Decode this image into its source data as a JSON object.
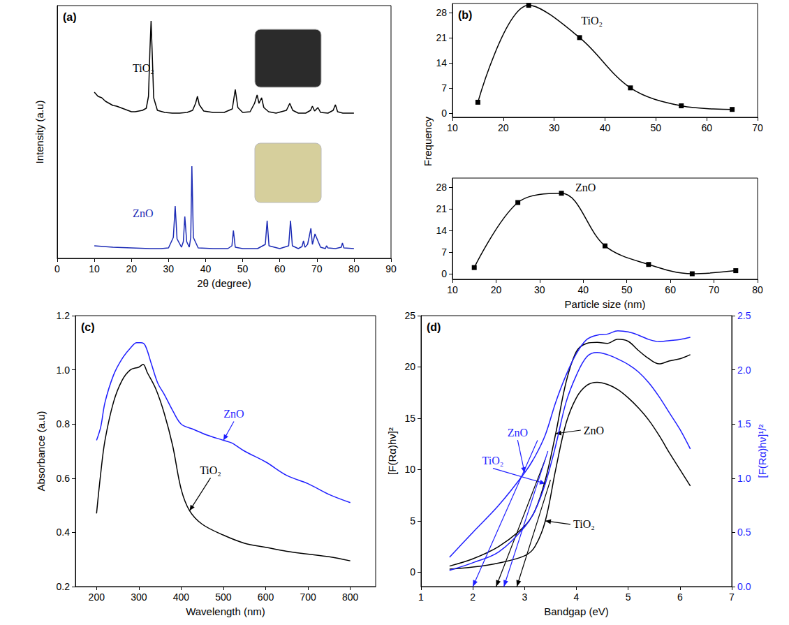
{
  "chart_data": [
    {
      "type": "line",
      "panel_label": "(a)",
      "xlabel": "2θ (degree)",
      "ylabel": "Intensity (a.u)",
      "xlim": [
        0,
        90
      ],
      "xticks": [
        0,
        10,
        20,
        30,
        40,
        50,
        60,
        70,
        80,
        90
      ],
      "ylim": [
        0,
        362
      ],
      "tick_labels": "x",
      "grid": false,
      "series": [
        {
          "name": "TiO₂",
          "color": "#000000",
          "x": [
            10,
            11,
            12,
            13,
            14,
            15,
            16,
            17,
            18,
            19,
            20,
            21,
            22,
            23,
            24,
            24.6,
            25.0,
            25.3,
            25.6,
            26.0,
            27,
            29,
            31,
            33,
            35,
            36.5,
            37.3,
            37.8,
            38.3,
            39.5,
            42,
            45,
            47.2,
            48.0,
            48.7,
            50,
            52,
            53.2,
            53.9,
            54.4,
            55.1,
            55.7,
            57,
            59,
            61.8,
            62.7,
            63.5,
            65,
            67,
            68.3,
            68.8,
            69.4,
            70.3,
            71,
            73,
            74.4,
            75.0,
            75.6,
            77,
            80
          ],
          "values": [
            238,
            232,
            230,
            225,
            222,
            219,
            218,
            216,
            214,
            212,
            210,
            210,
            211,
            212,
            215,
            232,
            300,
            340,
            295,
            230,
            212,
            209,
            208,
            208,
            209,
            212,
            222,
            232,
            220,
            211,
            209,
            209,
            214,
            242,
            216,
            209,
            210,
            222,
            234,
            222,
            230,
            216,
            210,
            208,
            212,
            222,
            212,
            208,
            208,
            212,
            218,
            211,
            216,
            209,
            208,
            212,
            220,
            210,
            208,
            208
          ]
        },
        {
          "name": "ZnO",
          "color": "#1c2bb5",
          "x": [
            10,
            15,
            20,
            25,
            28,
            30,
            31.3,
            31.8,
            32.3,
            33.5,
            34.0,
            34.4,
            34.9,
            35.6,
            36.0,
            36.3,
            36.7,
            38,
            42,
            46,
            47.1,
            47.5,
            48.0,
            50,
            54,
            56.1,
            56.6,
            57.1,
            60,
            62.4,
            62.9,
            63.4,
            65,
            66.0,
            66.4,
            66.8,
            67.5,
            67.9,
            68.4,
            68.8,
            69.1,
            69.5,
            71,
            72.3,
            72.6,
            73,
            75,
            76.6,
            76.9,
            77.3,
            80
          ],
          "values": [
            18,
            16,
            15,
            14,
            14,
            15,
            30,
            75,
            28,
            16,
            24,
            60,
            24,
            16,
            30,
            132,
            30,
            15,
            14,
            14,
            18,
            40,
            16,
            14,
            14,
            20,
            54,
            18,
            14,
            18,
            54,
            18,
            14,
            17,
            25,
            16,
            20,
            30,
            43,
            20,
            26,
            35,
            16,
            14,
            18,
            15,
            14,
            16,
            22,
            15,
            14
          ]
        }
      ]
    },
    {
      "type": "line",
      "panel_label": "(b)",
      "ylabel": "Frequency",
      "xlim": [
        10,
        70
      ],
      "xticks": [
        10,
        20,
        30,
        40,
        50,
        60,
        70
      ],
      "ylim": [
        -1.2,
        30.5
      ],
      "yticks": [
        0,
        7,
        14,
        21,
        28
      ],
      "grid": false,
      "series": [
        {
          "name": "TiO₂",
          "color": "#000000",
          "marker": "square",
          "x": [
            15,
            25,
            35,
            45,
            55,
            65
          ],
          "values": [
            3,
            30,
            21,
            7,
            2,
            1
          ]
        }
      ]
    },
    {
      "type": "line",
      "xlabel": "Particle size (nm)",
      "xlim": [
        10,
        80
      ],
      "xticks": [
        10,
        20,
        30,
        40,
        50,
        60,
        70,
        80
      ],
      "ylim": [
        -1.8,
        30.9
      ],
      "yticks": [
        0,
        7,
        14,
        21,
        28
      ],
      "grid": false,
      "series": [
        {
          "name": "ZnO",
          "color": "#000000",
          "marker": "square",
          "x": [
            15,
            25,
            35,
            45,
            55,
            65,
            75
          ],
          "values": [
            2,
            23,
            26,
            9,
            3,
            0,
            1
          ]
        }
      ]
    },
    {
      "type": "line",
      "panel_label": "(c)",
      "xlabel": "Wavelength (nm)",
      "ylabel": "Absorbance (a.u)",
      "xlim": [
        150,
        860
      ],
      "xticks": [
        200,
        300,
        400,
        500,
        600,
        700,
        800
      ],
      "ylim": [
        0.2,
        1.2
      ],
      "yticks": [
        0.2,
        0.4,
        0.6,
        0.8,
        {
          "value": 1,
          "label": "1.0"
        },
        1.2
      ],
      "grid": false,
      "series": [
        {
          "name": "ZnO",
          "color": "#1f1fff",
          "x": [
            200,
            210,
            220,
            240,
            260,
            280,
            295,
            305,
            315,
            330,
            345,
            360,
            380,
            400,
            430,
            460,
            500,
            520,
            550,
            600,
            650,
            700,
            750,
            800
          ],
          "values": [
            0.74,
            0.79,
            0.88,
            0.98,
            1.04,
            1.08,
            1.1,
            1.1,
            1.09,
            1.02,
            0.95,
            0.91,
            0.85,
            0.8,
            0.78,
            0.76,
            0.74,
            0.73,
            0.7,
            0.66,
            0.61,
            0.58,
            0.54,
            0.51
          ]
        },
        {
          "name": "TiO₂",
          "color": "#000000",
          "x": [
            200,
            210,
            220,
            240,
            260,
            280,
            300,
            310,
            320,
            340,
            360,
            380,
            400,
            420,
            450,
            500,
            550,
            600,
            650,
            700,
            750,
            800
          ],
          "values": [
            0.47,
            0.62,
            0.74,
            0.88,
            0.96,
            1.0,
            1.01,
            1.02,
            0.99,
            0.93,
            0.84,
            0.72,
            0.56,
            0.48,
            0.43,
            0.39,
            0.36,
            0.345,
            0.33,
            0.32,
            0.31,
            0.295
          ]
        }
      ]
    },
    {
      "type": "line",
      "panel_label": "(d)",
      "xlabel": "Bandgap (eV)",
      "ylabel": "[F(Rα)hν]²",
      "y2label": "[F(Rα)hν]¹/²",
      "xlim": [
        1,
        7
      ],
      "xticks": [
        1,
        2,
        3,
        4,
        5,
        6,
        7
      ],
      "ylim": [
        -1.4,
        25
      ],
      "yticks": [
        0,
        5,
        10,
        15,
        20,
        25
      ],
      "y2lim": [
        0,
        2.5
      ],
      "y2ticks": [
        {
          "value": 0,
          "label": "0.0"
        },
        0.5,
        {
          "value": 1,
          "label": "1.0"
        },
        1.5,
        {
          "value": 2,
          "label": "2.0"
        },
        2.5
      ],
      "grid": false,
      "series": [
        {
          "name": "TiO₂",
          "color": "#000000",
          "x": [
            1.55,
            2.0,
            2.5,
            3.0,
            3.2,
            3.4,
            3.6,
            3.8,
            4.0,
            4.2,
            4.4,
            4.6,
            4.8,
            5.0,
            5.2,
            5.4,
            5.6,
            5.8,
            6.0,
            6.2
          ],
          "values": [
            0.3,
            0.5,
            0.9,
            1.6,
            2.5,
            5,
            10,
            14.5,
            17,
            18.2,
            18.5,
            18.3,
            17.8,
            17,
            16,
            14.8,
            13.3,
            11.6,
            10,
            8.4
          ],
          "tangent": {
            "x": [
              3.5,
              2.85
            ],
            "values": [
              9,
              -1.4
            ]
          }
        },
        {
          "name": "ZnO",
          "color": "#000000",
          "x": [
            1.55,
            2.0,
            2.5,
            3.0,
            3.2,
            3.4,
            3.6,
            3.8,
            4.0,
            4.2,
            4.4,
            4.6,
            4.8,
            5.0,
            5.2,
            5.4,
            5.6,
            5.8,
            6.0,
            6.2
          ],
          "values": [
            0.6,
            1.3,
            2.5,
            4.5,
            6,
            9,
            13.5,
            18.5,
            21.5,
            22.3,
            22.4,
            22.3,
            22.7,
            22.5,
            21.6,
            20.8,
            20.3,
            20.6,
            20.8,
            21.2
          ],
          "tangent": {
            "x": [
              3.4,
              2.45
            ],
            "values": [
              11,
              -1.4
            ]
          }
        },
        {
          "name": "TiO₂",
          "color": "#1f1fff",
          "axis": "y2",
          "x": [
            1.55,
            2.0,
            2.5,
            3.0,
            3.2,
            3.4,
            3.6,
            3.8,
            4.0,
            4.2,
            4.4,
            4.6,
            4.8,
            5.0,
            5.2,
            5.4,
            5.6,
            5.8,
            6.0,
            6.2
          ],
          "values": [
            0.15,
            0.22,
            0.32,
            0.55,
            0.7,
            0.95,
            1.3,
            1.7,
            1.95,
            2.12,
            2.16,
            2.14,
            2.1,
            2.05,
            1.98,
            1.88,
            1.75,
            1.6,
            1.45,
            1.27
          ],
          "tangent": {
            "x": [
              3.45,
              2.6
            ],
            "values": [
              1.25,
              0
            ]
          }
        },
        {
          "name": "ZnO",
          "color": "#1f1fff",
          "axis": "y2",
          "x": [
            1.55,
            2.0,
            2.5,
            3.0,
            3.2,
            3.4,
            3.6,
            3.8,
            4.0,
            4.2,
            4.4,
            4.6,
            4.8,
            5.0,
            5.2,
            5.4,
            5.6,
            5.8,
            6.0,
            6.2
          ],
          "values": [
            0.27,
            0.5,
            0.75,
            1.05,
            1.2,
            1.4,
            1.7,
            1.95,
            2.15,
            2.28,
            2.32,
            2.33,
            2.36,
            2.35,
            2.32,
            2.28,
            2.26,
            2.27,
            2.28,
            2.3
          ],
          "tangent": {
            "x": [
              3.25,
              2.0
            ],
            "values": [
              1.35,
              0
            ]
          }
        }
      ]
    }
  ]
}
